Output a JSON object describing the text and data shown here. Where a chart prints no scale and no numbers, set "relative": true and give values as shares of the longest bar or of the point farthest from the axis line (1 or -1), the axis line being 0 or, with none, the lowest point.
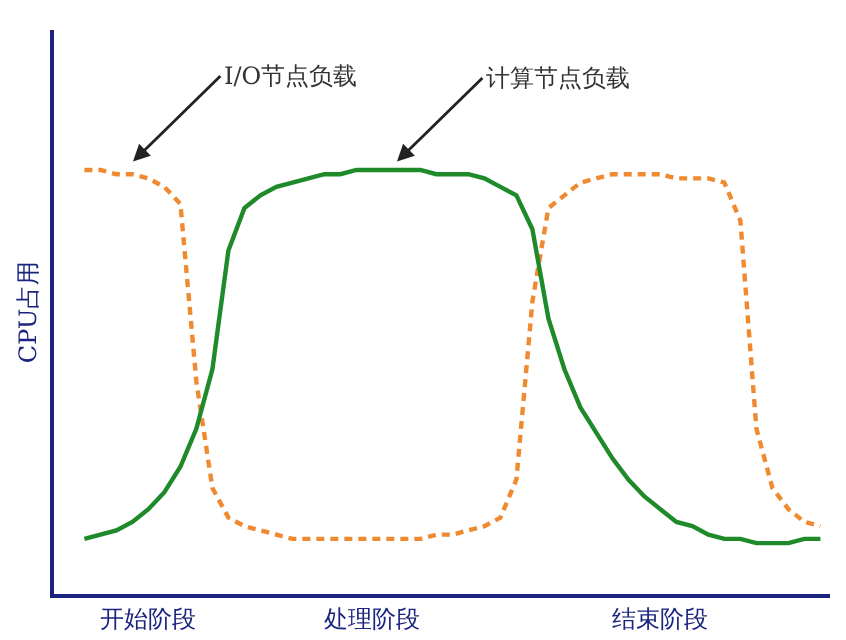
{
  "chart_data": {
    "type": "line",
    "relative": true,
    "ylabel": "CPU占用",
    "legend": false,
    "marker": "none",
    "categories": [
      null,
      null,
      null,
      null,
      "开始阶段",
      null,
      null,
      null,
      null,
      null,
      null,
      null,
      null,
      null,
      null,
      null,
      null,
      null,
      "处理阶段",
      null,
      null,
      null,
      null,
      null,
      null,
      null,
      null,
      null,
      null,
      null,
      null,
      null,
      null,
      null,
      null,
      null,
      "结束阶段",
      null,
      null,
      null,
      null,
      null,
      null,
      null,
      null,
      null,
      null
    ],
    "series": [
      {
        "name": "I/O节点负载",
        "color": "#f08a30",
        "line_style": "dashed",
        "values": [
          1.0,
          1.0,
          0.99,
          0.99,
          0.98,
          0.96,
          0.92,
          0.5,
          0.25,
          0.18,
          0.16,
          0.15,
          0.14,
          0.13,
          0.13,
          0.13,
          0.13,
          0.13,
          0.13,
          0.13,
          0.13,
          0.13,
          0.14,
          0.14,
          0.15,
          0.16,
          0.18,
          0.27,
          0.69,
          0.91,
          0.94,
          0.97,
          0.98,
          0.99,
          0.99,
          0.99,
          0.99,
          0.98,
          0.98,
          0.98,
          0.97,
          0.88,
          0.39,
          0.25,
          0.2,
          0.17,
          0.16
        ]
      },
      {
        "name": "计算节点负载",
        "color": "#1e8a2a",
        "line_style": "solid",
        "values": [
          0.13,
          0.14,
          0.15,
          0.17,
          0.2,
          0.24,
          0.3,
          0.39,
          0.53,
          0.81,
          0.91,
          0.94,
          0.96,
          0.97,
          0.98,
          0.99,
          0.99,
          1.0,
          1.0,
          1.0,
          1.0,
          1.0,
          0.99,
          0.99,
          0.99,
          0.98,
          0.96,
          0.94,
          0.86,
          0.65,
          0.53,
          0.44,
          0.38,
          0.32,
          0.27,
          0.23,
          0.2,
          0.17,
          0.16,
          0.14,
          0.13,
          0.13,
          0.12,
          0.12,
          0.12,
          0.13,
          0.13
        ]
      }
    ]
  }
}
